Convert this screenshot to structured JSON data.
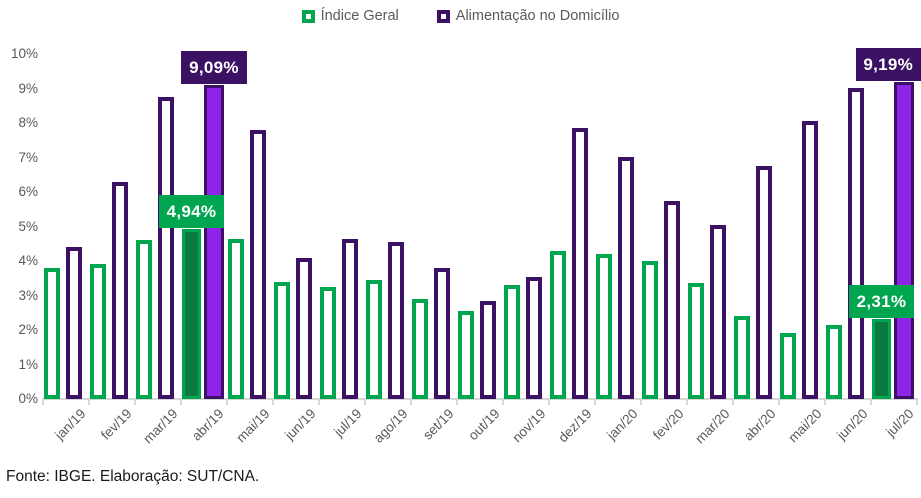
{
  "legend": {
    "items": [
      {
        "label": "Índice Geral",
        "color": "#00A550"
      },
      {
        "label": "Alimentação no Domicílio",
        "color": "#3B1163"
      }
    ]
  },
  "footer": {
    "source_text": "Fonte: IBGE. Elaboração: SUT/CNA."
  },
  "colors": {
    "green_outline": "#00A550",
    "green_fill_highlight": "#0B7A42",
    "purple_outline": "#3B1163",
    "purple_fill_highlight": "#8E24E8",
    "axis": "#d6d6d6",
    "axis_text": "#595959"
  },
  "chart_data": {
    "type": "bar",
    "title": "",
    "xlabel": "",
    "ylabel": "",
    "categories": [
      "jan/19",
      "fev/19",
      "mar/19",
      "abr/19",
      "mai/19",
      "jun/19",
      "jul/19",
      "ago/19",
      "set/19",
      "out/19",
      "nov/19",
      "dez/19",
      "jan/20",
      "fev/20",
      "mar/20",
      "abr/20",
      "mai/20",
      "jun/20",
      "jul/20"
    ],
    "series": [
      {
        "name": "Índice Geral",
        "color": "#00A550",
        "highlight_fill": "#0B7A42",
        "values": [
          3.8,
          3.9,
          4.6,
          4.94,
          4.65,
          3.4,
          3.25,
          3.45,
          2.9,
          2.55,
          3.3,
          4.3,
          4.2,
          4.0,
          3.35,
          2.4,
          1.9,
          2.15,
          2.31
        ]
      },
      {
        "name": "Alimentação no Domicílio",
        "color": "#3B1163",
        "highlight_fill": "#8E24E8",
        "values": [
          4.4,
          6.3,
          8.75,
          9.09,
          7.8,
          4.1,
          4.65,
          4.55,
          3.8,
          2.85,
          3.55,
          7.85,
          7.0,
          5.75,
          5.05,
          6.75,
          8.05,
          9.0,
          9.19
        ]
      }
    ],
    "highlighted_categories": [
      "abr/19",
      "jul/20"
    ],
    "data_labels": [
      {
        "text": "9,09%",
        "series": 1,
        "category": "abr/19",
        "bg": "#3B1163"
      },
      {
        "text": "4,94%",
        "series": 0,
        "category": "abr/19",
        "bg": "#00A550"
      },
      {
        "text": "9,19%",
        "series": 1,
        "category": "jul/20",
        "bg": "#3B1163"
      },
      {
        "text": "2,31%",
        "series": 0,
        "category": "jul/20",
        "bg": "#00A550"
      }
    ],
    "ylim": [
      0,
      10
    ],
    "y_ticks": [
      "0%",
      "1%",
      "2%",
      "3%",
      "4%",
      "5%",
      "6%",
      "7%",
      "8%",
      "9%",
      "10%"
    ],
    "grid": false,
    "legend_position": "top"
  }
}
